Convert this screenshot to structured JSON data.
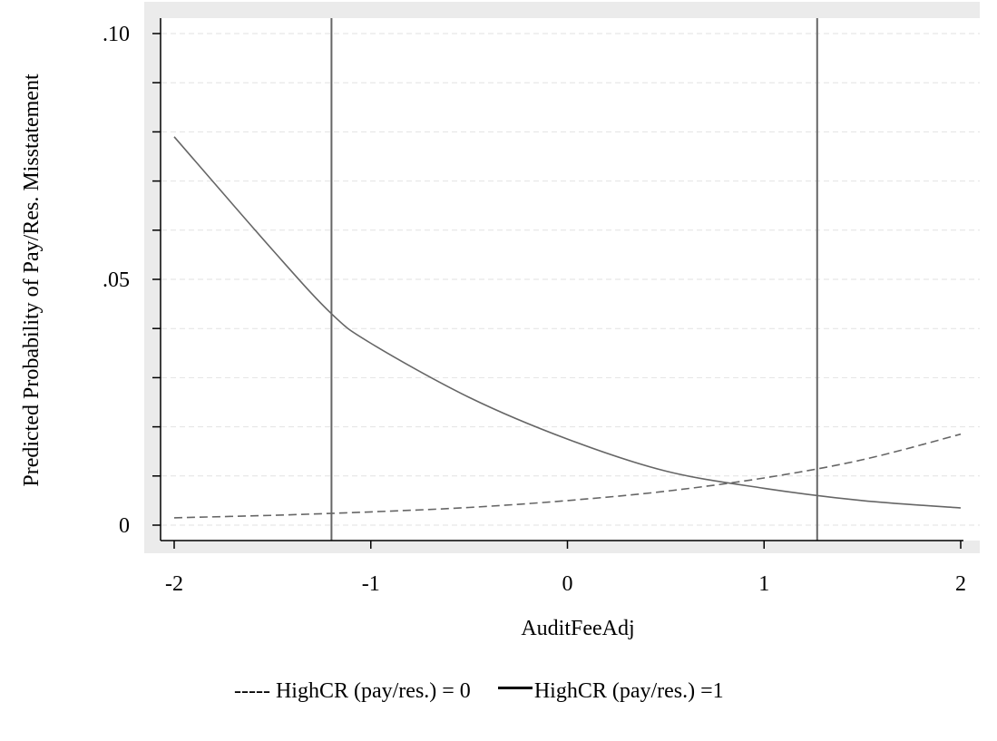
{
  "chart_data": {
    "type": "line",
    "title": "",
    "xlabel": "AuditFeeAdj",
    "ylabel": "Predicted Probability of Pay/Res. Misstatement",
    "xlim": [
      -2,
      2
    ],
    "ylim": [
      0,
      0.1
    ],
    "x_ticks": [
      {
        "value": -2,
        "label": "-2"
      },
      {
        "value": -1,
        "label": "-1"
      },
      {
        "value": 0,
        "label": "0"
      },
      {
        "value": 1,
        "label": "1"
      },
      {
        "value": 2,
        "label": "2"
      }
    ],
    "y_ticks": [
      {
        "value": 0,
        "label": "0"
      },
      {
        "value": 0.05,
        "label": ".05"
      },
      {
        "value": 0.1,
        "label": ".10"
      }
    ],
    "y_minor_ticks": [
      0.01,
      0.02,
      0.03,
      0.04,
      0.06,
      0.07,
      0.08,
      0.09
    ],
    "grid": "horizontal-dashed",
    "reference_lines_x": [
      -1.2,
      1.27
    ],
    "series": [
      {
        "name": "HighCR (pay/res.) = 0",
        "style": "dashed",
        "x": [
          -2,
          -1.5,
          -1,
          -0.5,
          0,
          0.5,
          1,
          1.5,
          2
        ],
        "y": [
          0.0015,
          0.002,
          0.0027,
          0.0036,
          0.005,
          0.0069,
          0.0096,
          0.0133,
          0.0185
        ]
      },
      {
        "name": "HighCR (pay/res.) =1",
        "style": "solid",
        "x": [
          -2,
          -1.5,
          -1.2,
          -1,
          -0.5,
          0,
          0.5,
          1,
          1.5,
          2
        ],
        "y": [
          0.079,
          0.056,
          0.043,
          0.037,
          0.026,
          0.0175,
          0.011,
          0.0075,
          0.005,
          0.0035
        ]
      }
    ],
    "legend": {
      "position": "bottom",
      "dashed_marker": "-----",
      "entries": [
        "HighCR (pay/res.) = 0",
        "HighCR (pay/res.) =1"
      ]
    },
    "colors": {
      "frame_background": "#ebebeb",
      "plot_background": "#ffffff",
      "gridline": "#e2e2e2",
      "line": "#666666",
      "axis": "#000000"
    }
  }
}
